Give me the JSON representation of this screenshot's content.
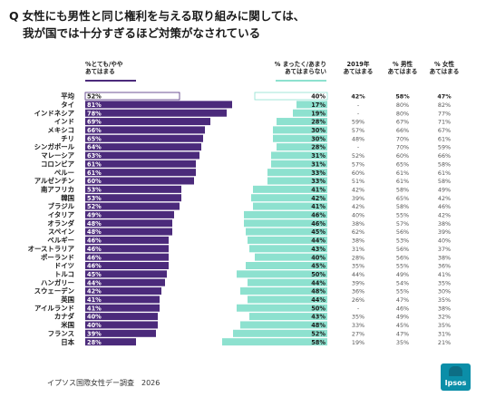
{
  "title": {
    "q": "Q",
    "line1": "女性にも男性と同じ権利を与える取り組みに関しては、",
    "line2": "我が国では十分すぎるほど対策がなされている"
  },
  "headers": {
    "agree_l1": "%とても/やや",
    "agree_l2": "あてはまる",
    "disagree_l1": "% まったく/あまり",
    "disagree_l2": "あてはまらない",
    "c1_l1": "2019年",
    "c1_l2": "あてはまる",
    "c2_l1": "% 男性",
    "c2_l2": "あてはまる",
    "c3_l1": "% 女性",
    "c3_l2": "あてはまる"
  },
  "source": "イプソス国際女性デー調査　2026",
  "logo": "Ipsos",
  "colors": {
    "agree": "#4b2a7b",
    "disagree": "#8de1cf",
    "average_fill": "#ffffff"
  },
  "chart_data": {
    "type": "bar",
    "orientation": "horizontal",
    "stacked": "diverging",
    "categories": [
      "平均",
      "タイ",
      "インドネシア",
      "インド",
      "メキシコ",
      "チリ",
      "シンガポール",
      "マレーシア",
      "コロンビア",
      "ペルー",
      "アルゼンチン",
      "南アフリカ",
      "韓国",
      "ブラジル",
      "イタリア",
      "オランダ",
      "スペイン",
      "ベルギー",
      "オーストラリア",
      "ポーランド",
      "ドイツ",
      "トルコ",
      "ハンガリー",
      "スウェーデン",
      "英国",
      "アイルランド",
      "カナダ",
      "米国",
      "フランス",
      "日本"
    ],
    "series": [
      {
        "name": "%とても/ややあてはまる",
        "values": [
          52,
          81,
          78,
          69,
          66,
          65,
          64,
          63,
          61,
          61,
          60,
          53,
          53,
          52,
          49,
          48,
          48,
          46,
          46,
          46,
          46,
          45,
          44,
          42,
          41,
          41,
          40,
          40,
          39,
          28
        ]
      },
      {
        "name": "% まったく/あまりあてはまらない",
        "values": [
          40,
          17,
          19,
          28,
          30,
          30,
          28,
          31,
          31,
          33,
          33,
          41,
          42,
          41,
          46,
          46,
          45,
          44,
          43,
          40,
          45,
          50,
          44,
          48,
          44,
          50,
          43,
          48,
          52,
          58
        ]
      }
    ],
    "table": {
      "columns": [
        "2019年 あてはまる",
        "% 男性 あてはまる",
        "% 女性 あてはまる"
      ],
      "rows": [
        [
          "42%",
          "58%",
          "47%"
        ],
        [
          "-",
          "80%",
          "82%"
        ],
        [
          "-",
          "80%",
          "77%"
        ],
        [
          "59%",
          "67%",
          "71%"
        ],
        [
          "57%",
          "66%",
          "67%"
        ],
        [
          "48%",
          "70%",
          "61%"
        ],
        [
          "-",
          "70%",
          "59%"
        ],
        [
          "52%",
          "60%",
          "66%"
        ],
        [
          "57%",
          "65%",
          "58%"
        ],
        [
          "60%",
          "61%",
          "61%"
        ],
        [
          "51%",
          "61%",
          "58%"
        ],
        [
          "42%",
          "58%",
          "49%"
        ],
        [
          "39%",
          "65%",
          "42%"
        ],
        [
          "42%",
          "58%",
          "46%"
        ],
        [
          "40%",
          "55%",
          "42%"
        ],
        [
          "38%",
          "57%",
          "38%"
        ],
        [
          "62%",
          "56%",
          "39%"
        ],
        [
          "38%",
          "53%",
          "40%"
        ],
        [
          "31%",
          "56%",
          "37%"
        ],
        [
          "28%",
          "56%",
          "38%"
        ],
        [
          "35%",
          "55%",
          "36%"
        ],
        [
          "44%",
          "49%",
          "41%"
        ],
        [
          "39%",
          "54%",
          "35%"
        ],
        [
          "36%",
          "55%",
          "30%"
        ],
        [
          "26%",
          "47%",
          "35%"
        ],
        [
          "-",
          "46%",
          "38%"
        ],
        [
          "35%",
          "49%",
          "32%"
        ],
        [
          "33%",
          "45%",
          "35%"
        ],
        [
          "27%",
          "47%",
          "31%"
        ],
        [
          "19%",
          "35%",
          "21%"
        ]
      ]
    }
  }
}
